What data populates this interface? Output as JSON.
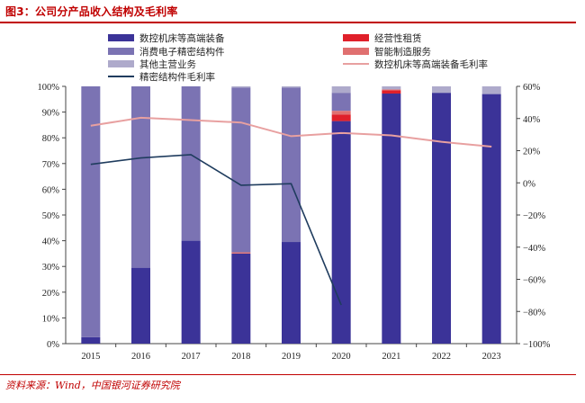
{
  "header": {
    "title": "图3：公司分产品收入结构及毛利率"
  },
  "footer": {
    "source": "资料来源：Wind，中国银河证券研究院"
  },
  "colors": {
    "cnc": "#3b3398",
    "consumer": "#7b73b3",
    "other": "#aeaacb",
    "leasing": "#e0202a",
    "smart_mfg": "#e07070",
    "cnc_margin_line": "#e8a0a0",
    "precision_margin_line": "#1f3c5e"
  },
  "chart_data": {
    "type": "bar",
    "stacked": true,
    "categories": [
      "2015",
      "2016",
      "2017",
      "2018",
      "2019",
      "2020",
      "2021",
      "2022",
      "2023"
    ],
    "series": [
      {
        "name": "数控机床等高端装备",
        "key": "cnc",
        "axis": "left",
        "values": [
          2.5,
          29.5,
          40,
          35,
          39.5,
          86.5,
          97.2,
          97.5,
          97
        ]
      },
      {
        "name": "经营性租赁",
        "key": "leasing",
        "axis": "left",
        "values": [
          0,
          0,
          0,
          0,
          0,
          2.5,
          1.3,
          0,
          0
        ]
      },
      {
        "name": "智能制造服务",
        "key": "smart_mfg",
        "axis": "left",
        "values": [
          0,
          0,
          0,
          0.5,
          0,
          1.5,
          0.3,
          0,
          0
        ]
      },
      {
        "name": "消费电子精密结构件",
        "key": "consumer",
        "axis": "left",
        "values": [
          97.5,
          70.5,
          60,
          64,
          60,
          7,
          0,
          0,
          0
        ]
      },
      {
        "name": "其他主营业务",
        "key": "other",
        "axis": "left",
        "values": [
          0,
          0,
          0,
          0.5,
          0.5,
          2.5,
          1.2,
          2.5,
          3
        ]
      }
    ],
    "lines": [
      {
        "name": "数控机床等高端装备毛利率",
        "key": "cnc_margin_line",
        "axis": "right",
        "values": [
          35.5,
          40.5,
          39,
          37.5,
          29,
          31,
          29.5,
          25.5,
          22.5
        ]
      },
      {
        "name": "精密结构件毛利率",
        "key": "precision_margin_line",
        "axis": "right",
        "values": [
          11.5,
          15.5,
          17.5,
          -1.5,
          -0.5,
          -76,
          null,
          null,
          null
        ]
      }
    ],
    "y_left": {
      "min": 0,
      "max": 100,
      "ticks": [
        "0%",
        "10%",
        "20%",
        "30%",
        "40%",
        "50%",
        "60%",
        "70%",
        "80%",
        "90%",
        "100%"
      ]
    },
    "y_right": {
      "min": -100,
      "max": 60,
      "ticks": [
        "−100%",
        "−80%",
        "−60%",
        "−40%",
        "−20%",
        "0%",
        "20%",
        "40%",
        "60%"
      ]
    },
    "legend": {
      "placement": "top",
      "entries": [
        {
          "label": "数控机床等高端装备",
          "key": "cnc",
          "kind": "box"
        },
        {
          "label": "经营性租赁",
          "key": "leasing",
          "kind": "box"
        },
        {
          "label": "消费电子精密结构件",
          "key": "consumer",
          "kind": "box"
        },
        {
          "label": "智能制造服务",
          "key": "smart_mfg",
          "kind": "box"
        },
        {
          "label": "其他主营业务",
          "key": "other",
          "kind": "box"
        },
        {
          "label": "数控机床等高端装备毛利率",
          "key": "cnc_margin_line",
          "kind": "line"
        },
        {
          "label": "精密结构件毛利率",
          "key": "precision_margin_line",
          "kind": "line"
        }
      ]
    }
  }
}
